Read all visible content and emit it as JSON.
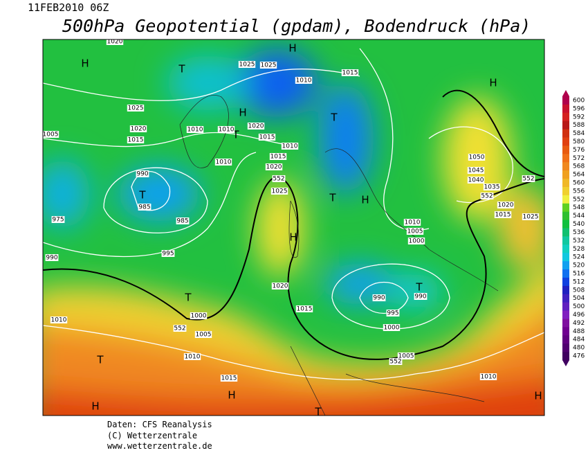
{
  "header": {
    "date": "11FEB2010 06Z",
    "title": "500hPa Geopotential (gpdam), Bodendruck (hPa)"
  },
  "map_labels": [
    "H",
    "T",
    "H",
    "H",
    "H",
    "T",
    "T",
    "T",
    "T",
    "H",
    "H",
    "T",
    "T",
    "T",
    "H",
    "H",
    "T",
    "H",
    "1020",
    "1025",
    "1020",
    "1015",
    "1005",
    "1010",
    "1010",
    "1010",
    "1020",
    "1015",
    "1010",
    "1025",
    "1025",
    "1010",
    "1015",
    "1015",
    "1020",
    "1025",
    "990",
    "985",
    "985",
    "975",
    "995",
    "990",
    "1000",
    "1005",
    "1010",
    "1010",
    "1015",
    "1020",
    "1015",
    "1050",
    "1045",
    "1040",
    "1035",
    "1020",
    "1015",
    "1025",
    "1010",
    "1005",
    "1000",
    "990",
    "995",
    "990",
    "1000",
    "1005",
    "1010",
    "552",
    "552",
    "552",
    "552",
    "552"
  ],
  "colorbar": {
    "ticks": [
      600,
      596,
      592,
      588,
      584,
      580,
      576,
      572,
      568,
      564,
      560,
      556,
      552,
      548,
      544,
      540,
      536,
      532,
      528,
      524,
      520,
      516,
      512,
      508,
      504,
      500,
      496,
      492,
      488,
      484,
      480,
      476
    ],
    "colors": [
      "#b0004c",
      "#c8102e",
      "#d42020",
      "#b81818",
      "#d03010",
      "#e04010",
      "#e85a10",
      "#f07018",
      "#f08820",
      "#f0a020",
      "#f0b828",
      "#f0d030",
      "#f0f040",
      "#60d020",
      "#30c030",
      "#10c040",
      "#10c070",
      "#10c8a0",
      "#10d0c0",
      "#10c8e0",
      "#10a0f0",
      "#1070f0",
      "#1040e0",
      "#2020c0",
      "#4020c0",
      "#6020c0",
      "#8020c0",
      "#8010a0",
      "#700090",
      "#600080",
      "#500070",
      "#400060"
    ]
  },
  "footer": {
    "source": "Daten: CFS Reanalysis",
    "copyright": "(C) Wetterzentrale",
    "url": "www.wetterzentrale.de"
  }
}
